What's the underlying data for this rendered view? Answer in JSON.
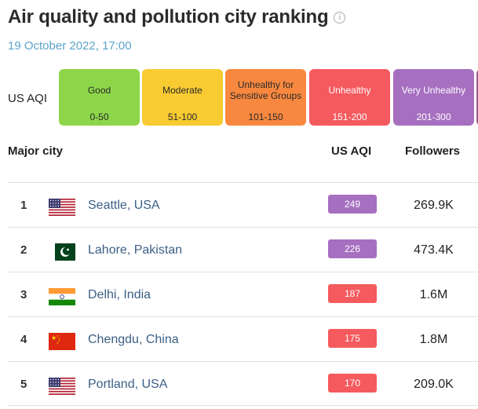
{
  "header": {
    "title": "Air quality and pollution city ranking",
    "info_icon": "i",
    "timestamp": "19 October 2022, 17:00"
  },
  "legend": {
    "label": "US AQI",
    "items": [
      {
        "name": "Good",
        "range": "0-50",
        "bg": "#8dd64a",
        "fg": "#2a2a2a"
      },
      {
        "name": "Moderate",
        "range": "51-100",
        "bg": "#f8cb32",
        "fg": "#2a2a2a"
      },
      {
        "name": "Unhealthy for Sensitive Groups",
        "range": "101-150",
        "bg": "#f8883f",
        "fg": "#2a2a2a"
      },
      {
        "name": "Unhealthy",
        "range": "151-200",
        "bg": "#f55a5e",
        "fg": "#ffffff"
      },
      {
        "name": "Very Unhealthy",
        "range": "201-300",
        "bg": "#a66fc0",
        "fg": "#ffffff"
      },
      {
        "name": "",
        "range": "",
        "bg": "#9b5c8e",
        "fg": "#ffffff"
      }
    ]
  },
  "table": {
    "col_city": "Major city",
    "col_aqi": "US AQI",
    "col_followers": "Followers",
    "rows": [
      {
        "rank": "1",
        "flag": "us-flag-icon",
        "city": "Seattle, USA",
        "aqi": "249",
        "aqi_color": "#a66fc0",
        "followers": "269.9K"
      },
      {
        "rank": "2",
        "flag": "pakistan-flag-icon",
        "city": "Lahore, Pakistan",
        "aqi": "226",
        "aqi_color": "#a66fc0",
        "followers": "473.4K"
      },
      {
        "rank": "3",
        "flag": "india-flag-icon",
        "city": "Delhi, India",
        "aqi": "187",
        "aqi_color": "#f55a5e",
        "followers": "1.6M"
      },
      {
        "rank": "4",
        "flag": "china-flag-icon",
        "city": "Chengdu, China",
        "aqi": "175",
        "aqi_color": "#f55a5e",
        "followers": "1.8M"
      },
      {
        "rank": "5",
        "flag": "us-flag-icon",
        "city": "Portland, USA",
        "aqi": "170",
        "aqi_color": "#f55a5e",
        "followers": "209.0K"
      }
    ]
  }
}
